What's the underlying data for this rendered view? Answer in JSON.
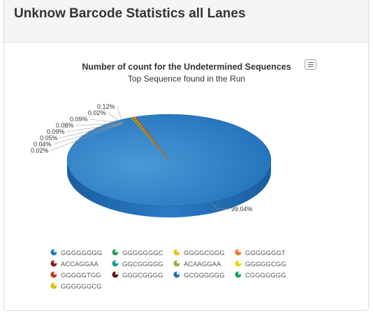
{
  "panel": {
    "title": "Unknow Barcode Statistics all Lanes"
  },
  "chart_data": {
    "type": "pie",
    "title": "Number of count for the Undetermined Sequences",
    "subtitle": "Top Sequence found in the Run",
    "three_d": true,
    "slice_labels": [
      "99.04%",
      "0.12%",
      "0.02%",
      "0.09%",
      "0.08%",
      "0.09%",
      "0.05%",
      "0.04%",
      "0.02%"
    ],
    "series": [
      {
        "name": "GGGGGGGG",
        "value": 99.04,
        "color": "#1f77c4"
      },
      {
        "name": "GGGGGGGC",
        "value": 0.12,
        "color": "#2ca25f"
      },
      {
        "name": "GGGGCGGG",
        "value": 0.02,
        "color": "#f0c20a"
      },
      {
        "name": "GGGGGGGT",
        "value": 0.09,
        "color": "#f07823"
      },
      {
        "name": "ACCAGGAA",
        "value": 0.08,
        "color": "#8b1a1a"
      },
      {
        "name": "GGCGGGGG",
        "value": 0.09,
        "color": "#1a9e8c"
      },
      {
        "name": "ACAAGGAA",
        "value": 0.05,
        "color": "#8db33a"
      },
      {
        "name": "GGGGGCGG",
        "value": 0.04,
        "color": "#f0d800"
      },
      {
        "name": "GGGGGTGG",
        "value": 0.02,
        "color": "#c0391b"
      },
      {
        "name": "GGGCGGGG",
        "value": 0,
        "color": "#5c1a1a"
      },
      {
        "name": "GCGGGGGG",
        "value": 0,
        "color": "#1f6fb0"
      },
      {
        "name": "CGGGGGGG",
        "value": 0,
        "color": "#1aa05a"
      },
      {
        "name": "GGGGGGCG",
        "value": 0,
        "color": "#e0b800"
      }
    ],
    "legend_position": "bottom"
  },
  "export_icon": "menu-icon"
}
